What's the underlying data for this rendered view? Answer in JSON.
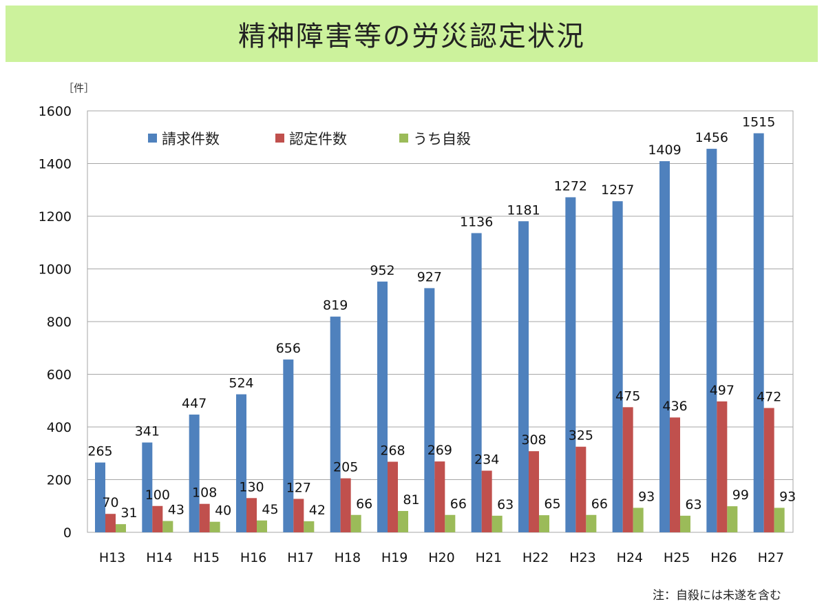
{
  "chart_data": {
    "type": "bar",
    "title": "精神障害等の労災認定状況",
    "ylabel": "［件］",
    "ylim": [
      0,
      1600
    ],
    "yticks": [
      0,
      200,
      400,
      600,
      800,
      1000,
      1200,
      1400,
      1600
    ],
    "grid": true,
    "legend_position": "top-left",
    "categories": [
      "H13",
      "H14",
      "H15",
      "H16",
      "H17",
      "H18",
      "H19",
      "H20",
      "H21",
      "H22",
      "H23",
      "H24",
      "H25",
      "H26",
      "H27"
    ],
    "series": [
      {
        "name": "請求件数",
        "color": "#4f81bd",
        "values": [
          265,
          341,
          447,
          524,
          656,
          819,
          952,
          927,
          1136,
          1181,
          1272,
          1257,
          1409,
          1456,
          1515
        ]
      },
      {
        "name": "認定件数",
        "color": "#c0504d",
        "values": [
          70,
          100,
          108,
          130,
          127,
          205,
          268,
          269,
          234,
          308,
          325,
          475,
          436,
          497,
          472
        ]
      },
      {
        "name": "うち自殺",
        "color": "#9bbb59",
        "values": [
          31,
          43,
          40,
          45,
          42,
          66,
          81,
          66,
          63,
          65,
          66,
          93,
          63,
          99,
          93
        ]
      }
    ],
    "note": "注：自殺には未遂を含む"
  }
}
